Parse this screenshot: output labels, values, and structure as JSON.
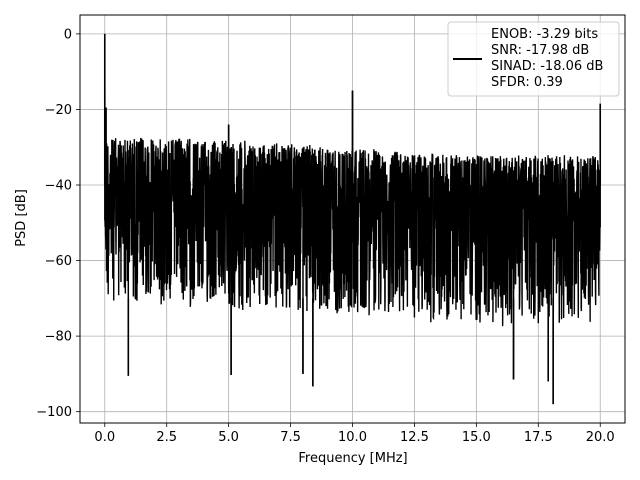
{
  "chart_data": {
    "type": "line",
    "title": "",
    "xlabel": "Frequency [MHz]",
    "ylabel": "PSD [dB]",
    "xlim": [
      -1,
      21
    ],
    "ylim": [
      -103,
      5
    ],
    "xticks": [
      0.0,
      2.5,
      5.0,
      7.5,
      10.0,
      12.5,
      15.0,
      17.5,
      20.0
    ],
    "xtick_labels": [
      "0.0",
      "2.5",
      "5.0",
      "7.5",
      "10.0",
      "12.5",
      "15.0",
      "17.5",
      "20.0"
    ],
    "yticks": [
      0,
      -20,
      -40,
      -60,
      -80,
      -100
    ],
    "ytick_labels": [
      "0",
      "−20",
      "−40",
      "−60",
      "−80",
      "−100"
    ],
    "grid": true,
    "legend_position": "top-right",
    "line_color": "#000000",
    "series": [
      {
        "noise_floor": {
          "x": [
            0,
            5,
            10,
            15,
            20
          ],
          "upper_envelope": [
            -27,
            -28,
            -30,
            -32,
            -32
          ],
          "lower_envelope": [
            -70,
            -72,
            -74,
            -76,
            -76
          ]
        },
        "spikes": [
          {
            "x": 0.0,
            "y": 0
          },
          {
            "x": 0.05,
            "y": -19.5
          },
          {
            "x": 5.0,
            "y": -24
          },
          {
            "x": 10.0,
            "y": -15
          },
          {
            "x": 20.0,
            "y": -18.5
          }
        ],
        "dips": [
          {
            "x": 0.95,
            "y": -90.5
          },
          {
            "x": 5.1,
            "y": -90.3
          },
          {
            "x": 8.0,
            "y": -90
          },
          {
            "x": 8.4,
            "y": -93.3
          },
          {
            "x": 16.5,
            "y": -91.5
          },
          {
            "x": 17.9,
            "y": -92
          },
          {
            "x": 18.1,
            "y": -98
          }
        ]
      }
    ],
    "legend": {
      "lines": [
        "ENOB: -3.29 bits",
        "SNR: -17.98 dB",
        "SINAD: -18.06 dB",
        "SFDR: 0.39"
      ]
    }
  }
}
